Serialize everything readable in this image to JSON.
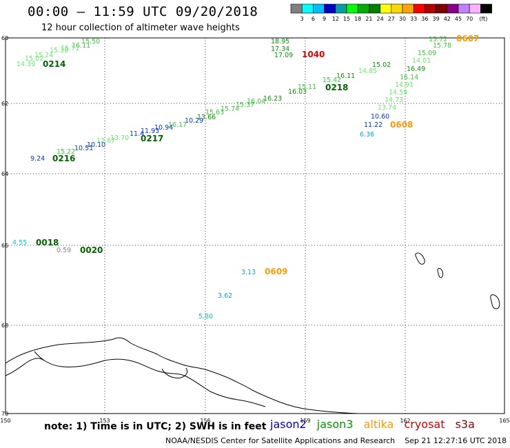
{
  "title": "00:00 – 11:59 UTC 09/20/2018",
  "subtitle": "12 hour collection of altimeter wave heights",
  "legend": {
    "colors": [
      "#808080",
      "#00ffff",
      "#00bfff",
      "#0000cd",
      "#00a0a0",
      "#00ff00",
      "#00b000",
      "#008000",
      "#ffff00",
      "#ffd700",
      "#ffa500",
      "#ff0000",
      "#b00000",
      "#800000",
      "#8b008b",
      "#c080ff",
      "#ffb0ff",
      "#000000"
    ],
    "labels": [
      "3",
      "6",
      "9",
      "12",
      "15",
      "18",
      "21",
      "24",
      "27",
      "30",
      "33",
      "36",
      "39",
      "42",
      "45",
      "70"
    ],
    "unit": "(ft)"
  },
  "axes": {
    "x_ticks": [
      "150",
      "153",
      "156",
      "159",
      "162",
      "165"
    ],
    "y_ticks": [
      "60",
      "62",
      "64",
      "66",
      "68",
      "70"
    ]
  },
  "observations": [
    {
      "text": "15.50",
      "color": "#33cc33"
    },
    {
      "text": "16.11",
      "color": "#33cc33"
    },
    {
      "text": "15.71",
      "color": "#66ee66"
    },
    {
      "text": "15.38",
      "color": "#66ee66"
    },
    {
      "text": "15.24",
      "color": "#66ee66"
    },
    {
      "text": "14.39",
      "color": "#66ee66"
    },
    {
      "text": "15.02",
      "color": "#66ee66"
    },
    {
      "text": "0214",
      "color": "#006600",
      "time": true
    },
    {
      "text": "18.95",
      "color": "#009900"
    },
    {
      "text": "17.34",
      "color": "#009900"
    },
    {
      "text": "17.09",
      "color": "#009900"
    },
    {
      "text": "1040",
      "color": "#e00000",
      "time": true
    },
    {
      "text": "15.72",
      "color": "#33cc33"
    },
    {
      "text": "0607",
      "color": "#ff9900",
      "time": true
    },
    {
      "text": "15.78",
      "color": "#33cc33"
    },
    {
      "text": "15.09",
      "color": "#33cc33"
    },
    {
      "text": "14.01",
      "color": "#66ee66"
    },
    {
      "text": "16.49",
      "color": "#009900"
    },
    {
      "text": "16.14",
      "color": "#33cc33"
    },
    {
      "text": "14.91",
      "color": "#66ee66"
    },
    {
      "text": "14.59",
      "color": "#66ee66"
    },
    {
      "text": "14.73",
      "color": "#66ee66"
    },
    {
      "text": "13.74",
      "color": "#66ee66"
    },
    {
      "text": "15.02",
      "color": "#009900"
    },
    {
      "text": "14.85",
      "color": "#66ee66"
    },
    {
      "text": "16.11",
      "color": "#009900"
    },
    {
      "text": "15.42",
      "color": "#33cc33"
    },
    {
      "text": "0218",
      "color": "#006600",
      "time": true
    },
    {
      "text": "15.11",
      "color": "#33cc33"
    },
    {
      "text": "16.03",
      "color": "#009900"
    },
    {
      "text": "16.23",
      "color": "#009900"
    },
    {
      "text": "16.04",
      "color": "#33cc33"
    },
    {
      "text": "15.37",
      "color": "#33cc33"
    },
    {
      "text": "15.74",
      "color": "#33cc33"
    },
    {
      "text": "15.63",
      "color": "#33cc33"
    },
    {
      "text": "13.66",
      "color": "#009900"
    },
    {
      "text": "10.29",
      "color": "#0033cc"
    },
    {
      "text": "16.17",
      "color": "#33cc33"
    },
    {
      "text": "10.94",
      "color": "#0033cc"
    },
    {
      "text": "11.93",
      "color": "#0033cc"
    },
    {
      "text": "11.4",
      "color": "#0033cc"
    },
    {
      "text": "0217",
      "color": "#006600",
      "time": true
    },
    {
      "text": "13.70",
      "color": "#66ee66"
    },
    {
      "text": "12.67",
      "color": "#66ee66"
    },
    {
      "text": "10.10",
      "color": "#0033cc"
    },
    {
      "text": "10.51",
      "color": "#0033cc"
    },
    {
      "text": "15.22",
      "color": "#33cc33"
    },
    {
      "text": "9.24",
      "color": "#0033cc"
    },
    {
      "text": "0216",
      "color": "#006600",
      "time": true
    },
    {
      "text": "10.60",
      "color": "#0033cc"
    },
    {
      "text": "11.22",
      "color": "#0033cc"
    },
    {
      "text": "0608",
      "color": "#ff9900",
      "time": true
    },
    {
      "text": "6.36",
      "color": "#00aadd"
    },
    {
      "text": "4.55",
      "color": "#00cccc"
    },
    {
      "text": "0018",
      "color": "#006600",
      "time": true
    },
    {
      "text": "0.59",
      "color": "#808080"
    },
    {
      "text": "0020",
      "color": "#006600",
      "time": true
    },
    {
      "text": "3.13",
      "color": "#00aadd"
    },
    {
      "text": "0609",
      "color": "#ff9900",
      "time": true
    },
    {
      "text": "3.62",
      "color": "#00aadd"
    },
    {
      "text": "5.80",
      "color": "#00cccc"
    }
  ],
  "note": "note: 1) Time is in UTC; 2) SWH is in feet",
  "satellites": [
    {
      "name": "jason2",
      "color": "#0000cc"
    },
    {
      "name": "jason3",
      "color": "#009900"
    },
    {
      "name": "altika",
      "color": "#ff9900"
    },
    {
      "name": "cryosat",
      "color": "#cc0000"
    },
    {
      "name": "s3a",
      "color": "#880000"
    }
  ],
  "credit": "NOAA/NESDIS Center for Satellite Applications and Research",
  "timestamp": "Sep 21 12:27:16 UTC 2018"
}
